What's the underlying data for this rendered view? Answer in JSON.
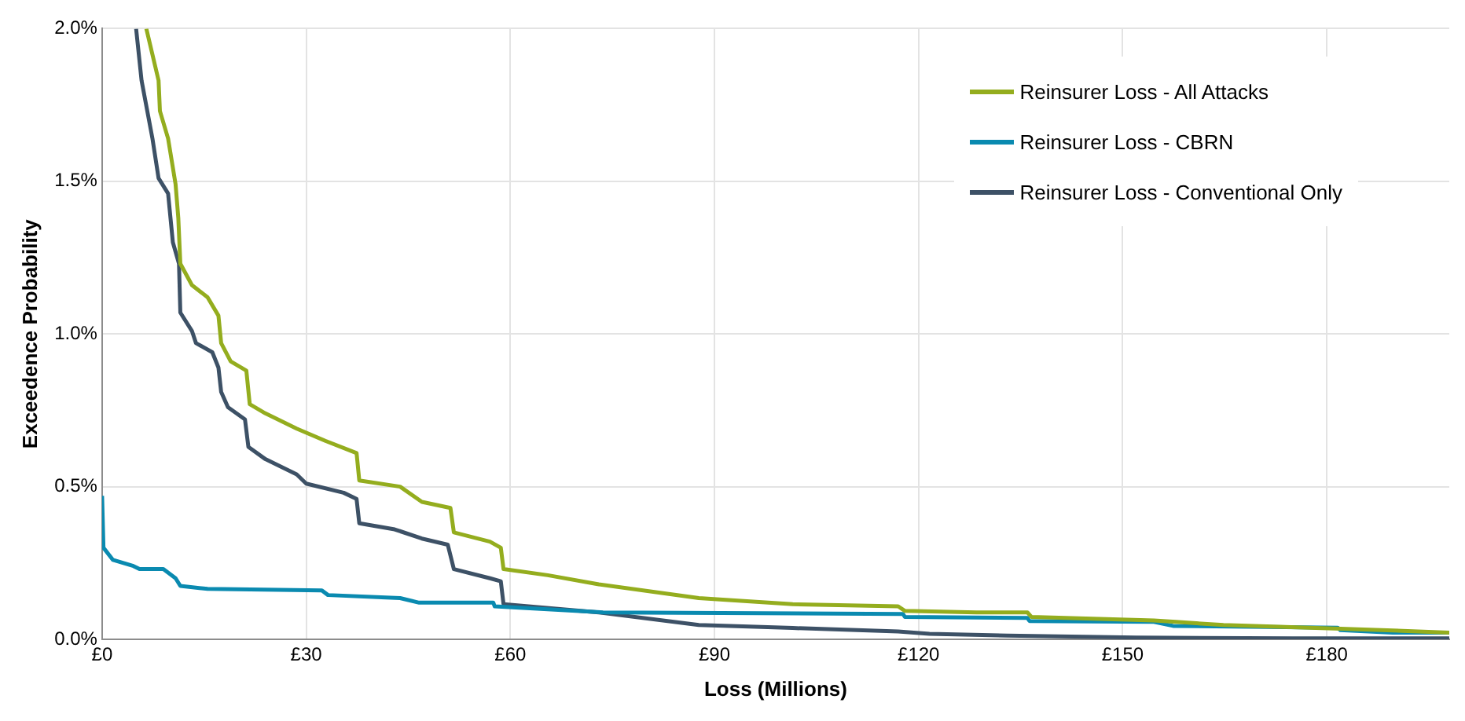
{
  "chart_data": {
    "type": "line",
    "xlabel": "Loss (Millions)",
    "ylabel": "Exceedence Probability",
    "xlim": [
      0,
      198
    ],
    "xticks": [
      {
        "value": 0,
        "label": "£0"
      },
      {
        "value": 30,
        "label": "£30"
      },
      {
        "value": 60,
        "label": "£60"
      },
      {
        "value": 90,
        "label": "£90"
      },
      {
        "value": 120,
        "label": "£120"
      },
      {
        "value": 150,
        "label": "£150"
      },
      {
        "value": 180,
        "label": "£180"
      }
    ],
    "ylim": [
      0,
      2
    ],
    "yticks": [
      {
        "value": 0,
        "label": "0.0%"
      },
      {
        "value": 0.5,
        "label": "0.5%"
      },
      {
        "value": 1,
        "label": "1.0%"
      },
      {
        "value": 1.5,
        "label": "1.5%"
      },
      {
        "value": 2,
        "label": "2.0%"
      }
    ],
    "grid": true,
    "legend": "top right",
    "marker": "none",
    "line_style": "solid",
    "series": [
      {
        "name": "Reinsurer Loss - All Attacks",
        "color": "#94ad1e",
        "x": [
          6.5,
          8.3,
          8.5,
          9.7,
          10.8,
          11.2,
          11.5,
          13.2,
          15.5,
          17.1,
          17.5,
          18.9,
          21.2,
          21.7,
          24,
          28.6,
          32.8,
          37.4,
          37.8,
          43.8,
          47,
          51.2,
          51.7,
          57,
          58.6,
          59,
          65.5,
          73,
          87.7,
          101.5,
          117,
          118,
          128.5,
          136,
          136.6,
          154.6,
          157.8,
          164.8,
          182,
          198
        ],
        "values": [
          2,
          1.83,
          1.73,
          1.64,
          1.49,
          1.38,
          1.23,
          1.16,
          1.12,
          1.06,
          0.97,
          0.91,
          0.88,
          0.77,
          0.74,
          0.69,
          0.65,
          0.61,
          0.52,
          0.5,
          0.45,
          0.43,
          0.35,
          0.32,
          0.3,
          0.23,
          0.21,
          0.18,
          0.135,
          0.115,
          0.108,
          0.093,
          0.088,
          0.088,
          0.073,
          0.062,
          0.057,
          0.047,
          0.035,
          0.022
        ]
      },
      {
        "name": "Reinsurer Loss - CBRN",
        "color": "#0a8ab0",
        "x": [
          0,
          0.2,
          1.6,
          4.6,
          5.5,
          9,
          10.8,
          11.5,
          15.5,
          32.3,
          33.2,
          43.8,
          46.6,
          57.5,
          57.7,
          73.6,
          117.7,
          118,
          136,
          136.3,
          154.6,
          157.4,
          181.6,
          182,
          189.7,
          198
        ],
        "values": [
          0.47,
          0.3,
          0.26,
          0.24,
          0.23,
          0.23,
          0.2,
          0.175,
          0.165,
          0.16,
          0.145,
          0.135,
          0.12,
          0.12,
          0.108,
          0.088,
          0.083,
          0.073,
          0.07,
          0.06,
          0.057,
          0.044,
          0.038,
          0.03,
          0.022,
          0.022
        ]
      },
      {
        "name": "Reinsurer Loss - Conventional Only",
        "color": "#3d5166",
        "x": [
          5,
          5.8,
          7.4,
          8.3,
          9.7,
          10.4,
          11.3,
          11.5,
          13.2,
          13.8,
          16.2,
          17.1,
          17.5,
          18.5,
          21,
          21.5,
          24,
          28.6,
          30,
          35.5,
          37.4,
          37.8,
          43,
          47,
          50.8,
          51.7,
          57,
          58.6,
          59,
          73,
          87.7,
          101.5,
          117,
          121.6,
          133,
          152,
          175,
          198
        ],
        "values": [
          2,
          1.83,
          1.64,
          1.51,
          1.46,
          1.3,
          1.23,
          1.07,
          1.01,
          0.97,
          0.94,
          0.89,
          0.81,
          0.76,
          0.72,
          0.63,
          0.59,
          0.54,
          0.51,
          0.48,
          0.46,
          0.38,
          0.36,
          0.33,
          0.31,
          0.23,
          0.2,
          0.19,
          0.115,
          0.088,
          0.047,
          0.037,
          0.026,
          0.018,
          0.012,
          0.006,
          0.003,
          0.003
        ]
      }
    ]
  }
}
